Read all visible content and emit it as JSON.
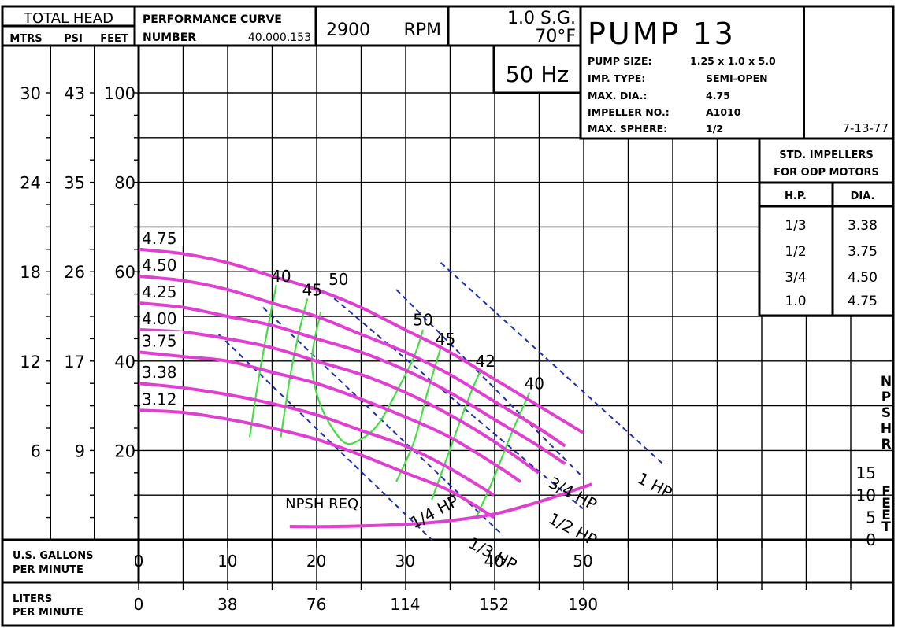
{
  "header": {
    "total_head": "TOTAL HEAD",
    "col_mtrs": "MTRS",
    "col_psi": "PSI",
    "col_feet": "FEET",
    "perf_curve": "PERFORMANCE CURVE",
    "number_label": "NUMBER",
    "number_value": "40.000.153",
    "rpm_value": "2900",
    "rpm_label": "RPM",
    "sg": "1.0 S.G.",
    "temp": "70°F",
    "hz": "50 Hz",
    "pump_title": "PUMP 13",
    "date": "7-13-77"
  },
  "specs": [
    {
      "label": "PUMP SIZE:",
      "value": "1.25 x 1.0 x 5.0"
    },
    {
      "label": "IMP. TYPE:",
      "value": "SEMI-OPEN"
    },
    {
      "label": "MAX. DIA.:",
      "value": "4.75"
    },
    {
      "label": "IMPELLER NO.:",
      "value": "A1010"
    },
    {
      "label": "MAX. SPHERE:",
      "value": "1/2"
    }
  ],
  "std_table": {
    "title1": "STD. IMPELLERS",
    "title2": "FOR ODP MOTORS",
    "col_hp": "H.P.",
    "col_dia": "DIA.",
    "rows": [
      {
        "hp": "1/3",
        "dia": "3.38"
      },
      {
        "hp": "1/2",
        "dia": "3.75"
      },
      {
        "hp": "3/4",
        "dia": "4.50"
      },
      {
        "hp": "1.0",
        "dia": "4.75"
      }
    ]
  },
  "left_axes": {
    "mtrs": [
      "30",
      "24",
      "18",
      "12",
      "6"
    ],
    "psi": [
      "43",
      "35",
      "26",
      "17",
      "9"
    ],
    "feet": [
      "100",
      "80",
      "60",
      "40",
      "20"
    ]
  },
  "bottom_axes": {
    "gpm_label1": "U.S. GALLONS",
    "gpm_label2": "PER MINUTE",
    "gpm_ticks": [
      "0",
      "10",
      "20",
      "30",
      "40",
      "50"
    ],
    "lpm_label1": "LITERS",
    "lpm_label2": "PER MINUTE",
    "lpm_ticks": [
      "0",
      "38",
      "76",
      "114",
      "152",
      "190"
    ]
  },
  "npsh_axis": {
    "label": "NPSHR",
    "label2": "FEET",
    "ticks": [
      "15",
      "10",
      "5",
      "0"
    ]
  },
  "chart_data": {
    "type": "line",
    "xlabel": "U.S. GALLONS PER MINUTE",
    "ylabel": "TOTAL HEAD",
    "xlim": [
      0,
      50
    ],
    "ylim_feet": [
      0,
      100
    ],
    "colors": {
      "head": "#e040d0",
      "efficiency": "#44dd44",
      "hp": "#1f2fb0",
      "grid": "#000000"
    },
    "head_curves": [
      {
        "name": "4.75",
        "points": [
          [
            0,
            65
          ],
          [
            5,
            64
          ],
          [
            10,
            62
          ],
          [
            15,
            59
          ],
          [
            20,
            56
          ],
          [
            25,
            52
          ],
          [
            30,
            47
          ],
          [
            35,
            42
          ],
          [
            40,
            36
          ],
          [
            45,
            30
          ],
          [
            50,
            24
          ]
        ]
      },
      {
        "name": "4.50",
        "points": [
          [
            0,
            59
          ],
          [
            5,
            58
          ],
          [
            10,
            56
          ],
          [
            15,
            53
          ],
          [
            20,
            50
          ],
          [
            25,
            46
          ],
          [
            30,
            42
          ],
          [
            35,
            37
          ],
          [
            40,
            31
          ],
          [
            45,
            25
          ],
          [
            48,
            21
          ]
        ]
      },
      {
        "name": "4.25",
        "points": [
          [
            0,
            53
          ],
          [
            5,
            52
          ],
          [
            10,
            50
          ],
          [
            15,
            48
          ],
          [
            20,
            45
          ],
          [
            25,
            42
          ],
          [
            30,
            38
          ],
          [
            35,
            33
          ],
          [
            40,
            27
          ],
          [
            45,
            21
          ],
          [
            48,
            17
          ]
        ]
      },
      {
        "name": "4.00",
        "points": [
          [
            0,
            47
          ],
          [
            5,
            46.5
          ],
          [
            10,
            45
          ],
          [
            15,
            43
          ],
          [
            20,
            40
          ],
          [
            25,
            37
          ],
          [
            30,
            33
          ],
          [
            35,
            28
          ],
          [
            40,
            22
          ],
          [
            45,
            15
          ]
        ]
      },
      {
        "name": "3.75",
        "points": [
          [
            0,
            42
          ],
          [
            5,
            41
          ],
          [
            10,
            40
          ],
          [
            15,
            37.5
          ],
          [
            20,
            35
          ],
          [
            25,
            31.5
          ],
          [
            30,
            27.5
          ],
          [
            35,
            23
          ],
          [
            40,
            17
          ],
          [
            43,
            13
          ]
        ]
      },
      {
        "name": "3.38",
        "points": [
          [
            0,
            35
          ],
          [
            5,
            34
          ],
          [
            10,
            32.5
          ],
          [
            15,
            30.5
          ],
          [
            20,
            28
          ],
          [
            25,
            24.5
          ],
          [
            30,
            21
          ],
          [
            35,
            16
          ],
          [
            40,
            10
          ]
        ]
      },
      {
        "name": "3.12",
        "points": [
          [
            0,
            29
          ],
          [
            5,
            28.5
          ],
          [
            10,
            27
          ],
          [
            15,
            25
          ],
          [
            20,
            22.5
          ],
          [
            25,
            19
          ],
          [
            30,
            15
          ],
          [
            35,
            11
          ],
          [
            40,
            5
          ]
        ]
      }
    ],
    "efficiency_curves": [
      {
        "name": "40",
        "points": [
          [
            12.5,
            23
          ],
          [
            13.5,
            36
          ],
          [
            14.5,
            47
          ],
          [
            15.5,
            57
          ]
        ]
      },
      {
        "name": "45",
        "points": [
          [
            16,
            23
          ],
          [
            17,
            36
          ],
          [
            18,
            46
          ],
          [
            19,
            54
          ]
        ]
      },
      {
        "name": "50",
        "points": [
          [
            20.5,
            51
          ],
          [
            19.5,
            40
          ],
          [
            20.5,
            30
          ],
          [
            23,
            22
          ],
          [
            25,
            22.5
          ],
          [
            27,
            26
          ],
          [
            29,
            33
          ],
          [
            31,
            41
          ],
          [
            32,
            47
          ]
        ]
      },
      {
        "name": "45",
        "points": [
          [
            29,
            13
          ],
          [
            31,
            22
          ],
          [
            32.5,
            33
          ],
          [
            34,
            43
          ]
        ]
      },
      {
        "name": "42",
        "points": [
          [
            33,
            9
          ],
          [
            35,
            20
          ],
          [
            37,
            31
          ],
          [
            38.5,
            38
          ]
        ]
      },
      {
        "name": "40",
        "points": [
          [
            38,
            5
          ],
          [
            40,
            14
          ],
          [
            42,
            24
          ],
          [
            44,
            33
          ]
        ]
      }
    ],
    "hp_lines": [
      {
        "name": "1/4 HP",
        "points": [
          [
            9,
            46
          ],
          [
            33,
            0
          ]
        ]
      },
      {
        "name": "1/3 HP",
        "points": [
          [
            14,
            52
          ],
          [
            41,
            1
          ]
        ]
      },
      {
        "name": "1/2 HP",
        "points": [
          [
            22,
            54
          ],
          [
            50,
            7
          ]
        ]
      },
      {
        "name": "3/4 HP",
        "points": [
          [
            29,
            56
          ],
          [
            50,
            14
          ]
        ]
      },
      {
        "name": "1 HP",
        "points": [
          [
            34,
            62
          ],
          [
            59,
            17
          ]
        ]
      }
    ],
    "npsh_required": {
      "name": "NPSH REQ.",
      "points": [
        [
          17,
          3
        ],
        [
          22,
          3
        ],
        [
          30,
          3.5
        ],
        [
          35,
          4.3
        ],
        [
          40,
          5.8
        ],
        [
          45,
          8.5
        ],
        [
          51,
          12.5
        ]
      ]
    },
    "npsh_ylim": [
      0,
      17.5
    ]
  }
}
